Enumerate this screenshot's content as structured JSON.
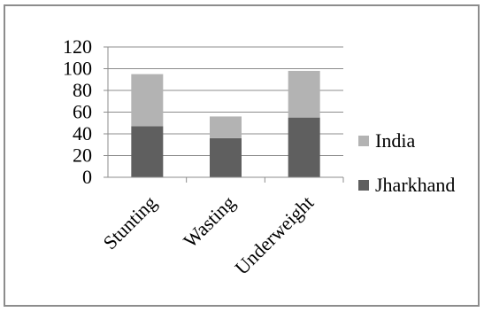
{
  "chart_data": {
    "type": "bar",
    "stacked": true,
    "categories": [
      "Stunting",
      "Wasting",
      "Underweight"
    ],
    "series": [
      {
        "name": "Jharkhand",
        "values": [
          47,
          36,
          55
        ],
        "color": "#5f5f5f"
      },
      {
        "name": "India",
        "values": [
          48,
          20,
          43
        ],
        "color": "#b3b3b3"
      }
    ],
    "yticks": [
      "0",
      "20",
      "40",
      "60",
      "80",
      "100",
      "120"
    ],
    "ylim": [
      0,
      120
    ],
    "grid": true,
    "legend_position": "right"
  }
}
